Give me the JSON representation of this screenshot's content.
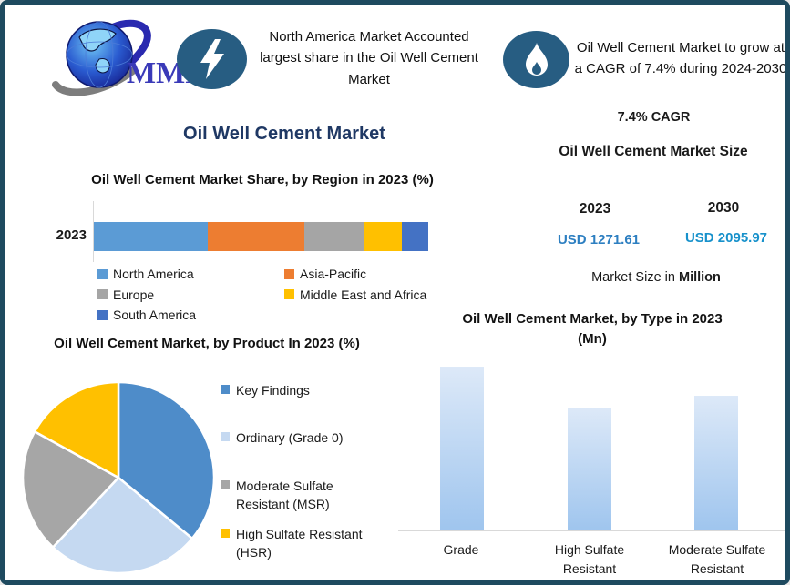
{
  "theme": {
    "frame_border": "#1e4a5f",
    "icon_bg": "#275d82",
    "main_title_color": "#1f3864"
  },
  "logo": {
    "text": "MMR"
  },
  "banners": [
    {
      "icon": "lightning-icon",
      "text": "North America Market Accounted largest share in the Oil Well Cement Market"
    },
    {
      "icon": "flame-icon",
      "text": "Oil Well Cement Market to grow at a CAGR of 7.4% during 2024-2030"
    }
  ],
  "main_title": "Oil Well Cement Market",
  "stats": {
    "cagr": "7.4% CAGR",
    "size_title": "Oil Well Cement Market Size",
    "year_start": "2023",
    "year_end": "2030",
    "value_start": "USD 1271.61",
    "value_end": "USD 2095.97",
    "value_start_color": "#2d7fc1",
    "value_end_color": "#1791cb",
    "unit_prefix": "Market Size in ",
    "unit_bold": "Million"
  },
  "chart_data": [
    {
      "type": "bar",
      "subtype": "stacked-horizontal",
      "title": "Oil Well Cement Market Share, by Region in 2023 (%)",
      "categories": [
        "2023"
      ],
      "series": [
        {
          "name": "North America",
          "color": "#5B9BD5",
          "values": [
            34
          ]
        },
        {
          "name": "Asia-Pacific",
          "color": "#ED7D31",
          "values": [
            29
          ]
        },
        {
          "name": "Europe",
          "color": "#A5A5A5",
          "values": [
            18
          ]
        },
        {
          "name": "Middle East and Africa",
          "color": "#FFC000",
          "values": [
            11
          ]
        },
        {
          "name": "South America",
          "color": "#4472C4",
          "values": [
            8
          ]
        }
      ],
      "xlabel": "",
      "ylabel": "",
      "grid": false,
      "legend_position": "bottom",
      "values_estimated_from_pixels": true
    },
    {
      "type": "pie",
      "title": "Oil Well Cement Market, by Product In 2023 (%)",
      "slices": [
        {
          "label": "Key Findings",
          "color": "#4E8CC9",
          "value": 36
        },
        {
          "label": "Ordinary (Grade 0)",
          "color": "#C5D9F1",
          "value": 26
        },
        {
          "label": "Moderate Sulfate\nResistant (MSR)",
          "color": "#A6A6A6",
          "value": 21
        },
        {
          "label": "High Sulfate Resistant\n(HSR)",
          "color": "#FFC000",
          "value": 17
        }
      ],
      "legend_position": "right",
      "values_estimated_from_pixels": true
    },
    {
      "type": "bar",
      "title": "Oil Well Cement Market, by Type in 2023 (Mn)",
      "categories": [
        "Grade",
        "High Sulfate Resistant",
        "Moderate Sulfate Resistant"
      ],
      "values": [
        100,
        75,
        82
      ],
      "bar_gradient": [
        "#DDE9F8",
        "#9FC5EE"
      ],
      "xlabel": "",
      "ylabel": "",
      "grid": false,
      "note": "no numeric axis shown; values are relative heights (% of tallest bar)"
    }
  ]
}
